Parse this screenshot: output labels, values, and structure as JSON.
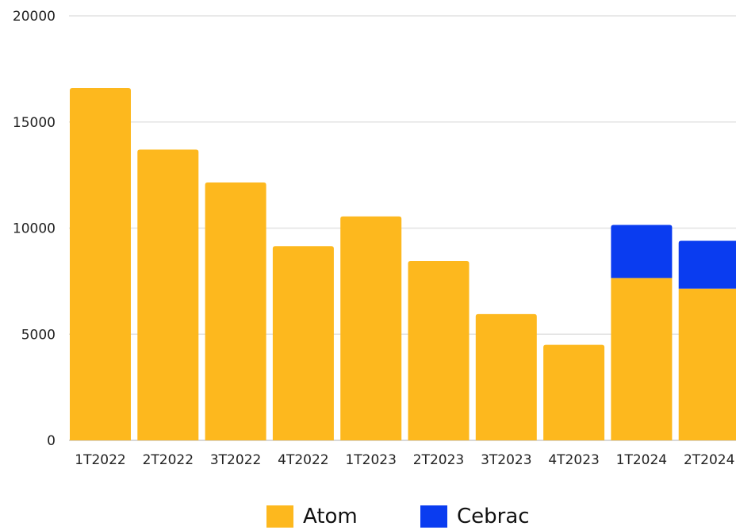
{
  "chart_data": {
    "type": "bar",
    "stacked": true,
    "title": "",
    "xlabel": "",
    "ylabel": "",
    "categories": [
      "1T2022",
      "2T2022",
      "3T2022",
      "4T2022",
      "1T2023",
      "2T2023",
      "3T2023",
      "4T2023",
      "1T2024",
      "2T2024"
    ],
    "series": [
      {
        "name": "Atom",
        "color": "#FDB81E",
        "values": [
          16600,
          13700,
          12150,
          9150,
          10550,
          8450,
          5950,
          4500,
          7650,
          7150
        ]
      },
      {
        "name": "Cebrac",
        "color": "#0A3CF0",
        "values": [
          0,
          0,
          0,
          0,
          0,
          0,
          0,
          0,
          2500,
          2250
        ]
      }
    ],
    "ylim": [
      0,
      20000
    ],
    "yticks": [
      "0",
      "5000",
      "10000",
      "15000",
      "20000"
    ],
    "grid": true,
    "legend_position": "bottom"
  }
}
